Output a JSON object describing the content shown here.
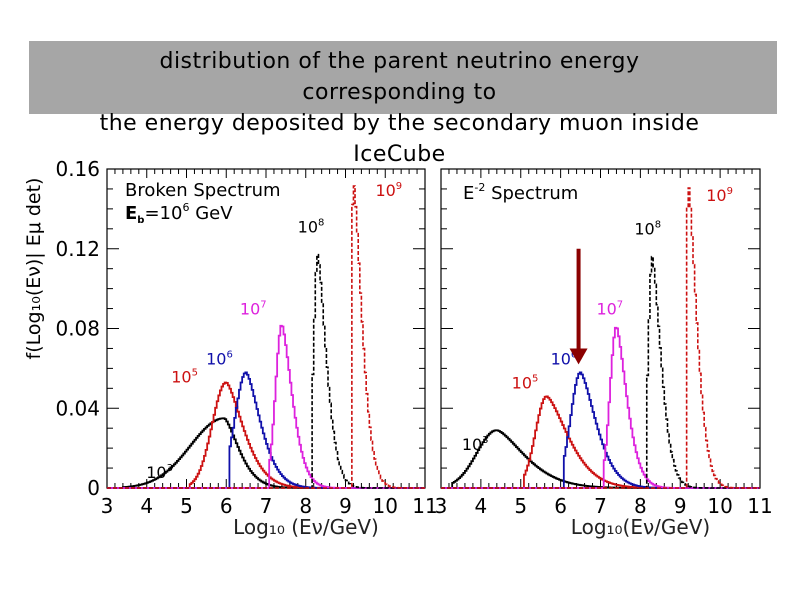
{
  "slide": {
    "title_line1": "distribution of the parent neutrino energy",
    "title_line2": "corresponding to",
    "title_line3": "the energy deposited by the secondary muon inside",
    "title_line4": "IceCube"
  },
  "chart_data": [
    {
      "type": "line",
      "style": "step-histogram",
      "panel": "left",
      "annotation_line1": "Broken Spectrum",
      "annotation_line2_base": "E",
      "annotation_line2_sub": "b",
      "annotation_line2_rest": "=10",
      "annotation_line2_exp": "6",
      "annotation_line2_unit": " GeV",
      "xlabel": "Log₁₀ (Eν/GeV)",
      "ylabel": "f(Log₁₀(Eν)| Eμ det)",
      "xlim": [
        3,
        11
      ],
      "ylim": [
        0,
        0.16
      ],
      "xticks": [
        "3",
        "4",
        "5",
        "6",
        "7",
        "8",
        "9",
        "10",
        "11"
      ],
      "yticks": [
        "0",
        "0.04",
        "0.08",
        "0.12",
        "0.16"
      ],
      "series": [
        {
          "name": "10^3",
          "base": "10",
          "exp": "3",
          "color": "#000000",
          "dash": false,
          "peak_x": 5.95,
          "peak_y": 0.035,
          "start_x": 3.4,
          "width_left": 0.85,
          "width_right": 0.42
        },
        {
          "name": "10^5",
          "base": "10",
          "exp": "5",
          "color": "#cc1111",
          "dash": false,
          "peak_x": 6.0,
          "peak_y": 0.053,
          "start_x": 5.1,
          "width_left": 0.35,
          "width_right": 0.5
        },
        {
          "name": "10^6",
          "base": "10",
          "exp": "6",
          "color": "#1010aa",
          "dash": false,
          "peak_x": 6.5,
          "peak_y": 0.058,
          "start_x": 6.1,
          "width_left": 0.28,
          "width_right": 0.42
        },
        {
          "name": "10^7",
          "base": "10",
          "exp": "7",
          "color": "#dd22dd",
          "dash": false,
          "peak_x": 7.4,
          "peak_y": 0.082,
          "start_x": 7.1,
          "width_left": 0.16,
          "width_right": 0.3
        },
        {
          "name": "10^8",
          "base": "10",
          "exp": "8",
          "color": "#000000",
          "dash": true,
          "peak_x": 8.3,
          "peak_y": 0.117,
          "start_x": 8.15,
          "width_left": 0.1,
          "width_right": 0.25
        },
        {
          "name": "10^9",
          "base": "10",
          "exp": "9",
          "color": "#cc1111",
          "dash": true,
          "peak_x": 9.2,
          "peak_y": 0.154,
          "start_x": 9.15,
          "width_left": 0.05,
          "width_right": 0.24
        }
      ]
    },
    {
      "type": "line",
      "style": "step-histogram",
      "panel": "right",
      "annotation_line1_base": "E",
      "annotation_line1_exp": "-2",
      "annotation_line1_rest": " Spectrum",
      "xlabel": "Log₁₀(Eν/GeV)",
      "xlim": [
        3,
        11
      ],
      "ylim": [
        0,
        0.16
      ],
      "xticks": [
        "3",
        "4",
        "5",
        "6",
        "7",
        "8",
        "9",
        "10",
        "11"
      ],
      "arrow_x": 6.45,
      "arrow_color": "#8b0000",
      "series": [
        {
          "name": "10^3",
          "base": "10",
          "exp": "3",
          "color": "#000000",
          "dash": false,
          "peak_x": 4.4,
          "peak_y": 0.029,
          "start_x": 3.3,
          "width_left": 0.5,
          "width_right": 0.8
        },
        {
          "name": "10^5",
          "base": "10",
          "exp": "5",
          "color": "#cc1111",
          "dash": false,
          "peak_x": 5.65,
          "peak_y": 0.046,
          "start_x": 5.1,
          "width_left": 0.28,
          "width_right": 0.62
        },
        {
          "name": "10^6",
          "base": "10",
          "exp": "6",
          "color": "#1010aa",
          "dash": false,
          "peak_x": 6.5,
          "peak_y": 0.058,
          "start_x": 6.1,
          "width_left": 0.25,
          "width_right": 0.45
        },
        {
          "name": "10^7",
          "base": "10",
          "exp": "7",
          "color": "#dd22dd",
          "dash": false,
          "peak_x": 7.4,
          "peak_y": 0.081,
          "start_x": 7.1,
          "width_left": 0.16,
          "width_right": 0.3
        },
        {
          "name": "10^8",
          "base": "10",
          "exp": "8",
          "color": "#000000",
          "dash": true,
          "peak_x": 8.3,
          "peak_y": 0.116,
          "start_x": 8.15,
          "width_left": 0.1,
          "width_right": 0.25
        },
        {
          "name": "10^9",
          "base": "10",
          "exp": "9",
          "color": "#cc1111",
          "dash": true,
          "peak_x": 9.2,
          "peak_y": 0.153,
          "start_x": 9.15,
          "width_left": 0.05,
          "width_right": 0.24
        }
      ]
    }
  ]
}
